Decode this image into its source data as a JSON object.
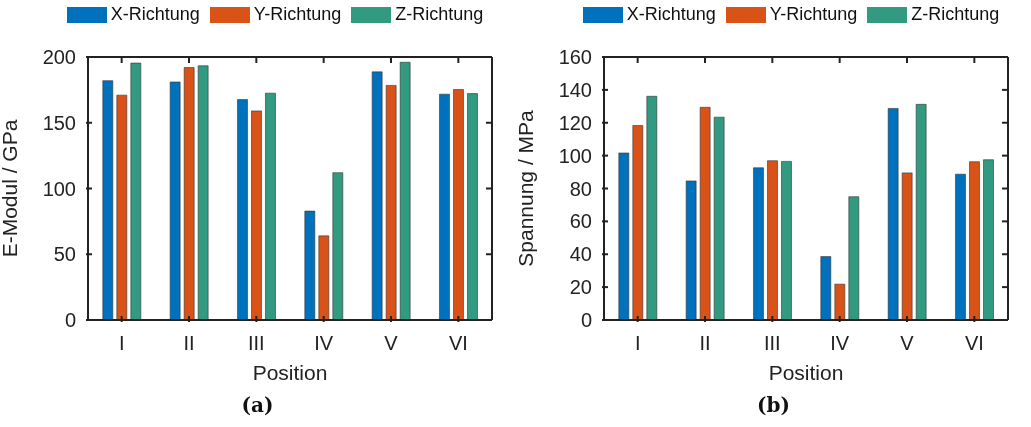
{
  "chart_data": [
    {
      "type": "bar",
      "categories": [
        "I",
        "II",
        "III",
        "IV",
        "V",
        "VI"
      ],
      "xlabel": "Position",
      "ylabel": "E-Modul / GPa",
      "ylim": [
        0,
        200
      ],
      "yticks": [
        0,
        50,
        100,
        150,
        200
      ],
      "legend": "top",
      "grid": false,
      "annotations": [
        "(a)"
      ],
      "series": [
        {
          "name": "X-Richtung",
          "color": "#0072bd",
          "values": [
            182,
            181,
            167.6,
            82.8,
            188.7,
            171.7
          ]
        },
        {
          "name": "Y-Richtung",
          "color": "#d95319",
          "values": [
            171,
            192,
            159,
            64,
            178.4,
            175.3
          ]
        },
        {
          "name": "Z-Richtung",
          "color": "#329a80",
          "values": [
            195.4,
            193.3,
            172.5,
            112,
            196,
            172.2
          ]
        }
      ]
    },
    {
      "type": "bar",
      "categories": [
        "I",
        "II",
        "III",
        "IV",
        "V",
        "VI"
      ],
      "xlabel": "Position",
      "ylabel": "Spannung / MPa",
      "ylim": [
        0,
        160
      ],
      "yticks": [
        0,
        20,
        40,
        60,
        80,
        100,
        120,
        140,
        160
      ],
      "legend": "top",
      "grid": false,
      "annotations": [
        "(b)"
      ],
      "series": [
        {
          "name": "X-Richtung",
          "color": "#0072bd",
          "values": [
            101.6,
            84.6,
            92.6,
            38.6,
            128.7,
            88.7
          ]
        },
        {
          "name": "Y-Richtung",
          "color": "#d95319",
          "values": [
            118.3,
            129.4,
            96.9,
            21.8,
            89.5,
            96.3
          ]
        },
        {
          "name": "Z-Richtung",
          "color": "#329a80",
          "values": [
            136.1,
            123.4,
            96.5,
            75,
            131.2,
            97.5
          ]
        }
      ]
    }
  ]
}
